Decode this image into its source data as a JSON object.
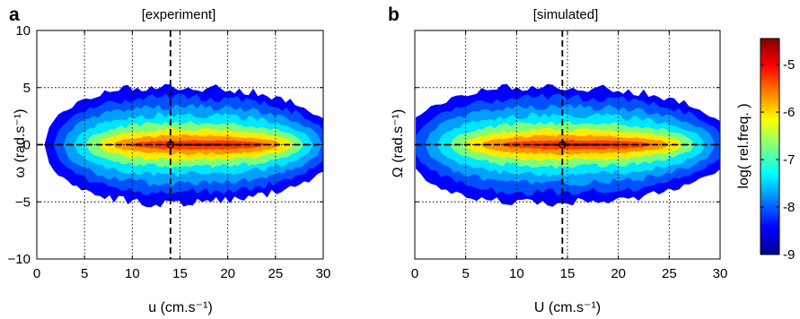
{
  "figure": {
    "colorbar": {
      "label": "log( rel.freq. )",
      "range": [
        -9,
        -4.45
      ],
      "ticks": [
        -9,
        -8,
        -7,
        -6,
        -5
      ],
      "tick_labels": [
        "-9",
        "-8",
        "-7",
        "-6",
        "-5"
      ],
      "colormap": "jet"
    }
  },
  "chart_data": [
    {
      "type": "heatmap",
      "panel_letter": "a",
      "title": "[experiment]",
      "xlabel": "u (cm.s⁻¹)",
      "ylabel": "ω (rad.s⁻¹)",
      "xlim": [
        0,
        30
      ],
      "ylim": [
        -10,
        10
      ],
      "xticks": [
        0,
        5,
        10,
        15,
        20,
        25,
        30
      ],
      "xtick_labels": [
        "0",
        "5",
        "10",
        "15",
        "20",
        "25",
        "30"
      ],
      "yticks": [
        -10,
        -5,
        0,
        5,
        10
      ],
      "ytick_labels": [
        "−10",
        "−5",
        "0",
        "5",
        "10"
      ],
      "grid": true,
      "vertical_dashed_line_x": 14,
      "horizontal_dashed_line_y": 0,
      "marker_point": [
        14,
        0
      ],
      "distribution": {
        "x_range": [
          1,
          28.5
        ],
        "peak_x": 17.5,
        "max_spread_y": 5.5,
        "peak_value": -4.6
      }
    },
    {
      "type": "heatmap",
      "panel_letter": "b",
      "title": "[simulated]",
      "xlabel": "U (cm.s⁻¹)",
      "ylabel": "Ω (rad.s⁻¹)",
      "xlim": [
        0,
        30
      ],
      "ylim": [
        -10,
        10
      ],
      "xticks": [
        0,
        5,
        10,
        15,
        20,
        25,
        30
      ],
      "xtick_labels": [
        "0",
        "5",
        "10",
        "15",
        "20",
        "25",
        "30"
      ],
      "yticks": [
        -10,
        -5,
        0,
        5,
        10
      ],
      "grid": true,
      "vertical_dashed_line_x": 14.5,
      "horizontal_dashed_line_y": 0,
      "marker_point": [
        14.5,
        0
      ],
      "distribution": {
        "x_range": [
          1,
          30
        ],
        "peak_x": 16.5,
        "max_spread_y": 5.5,
        "peak_value": -4.6
      }
    }
  ]
}
